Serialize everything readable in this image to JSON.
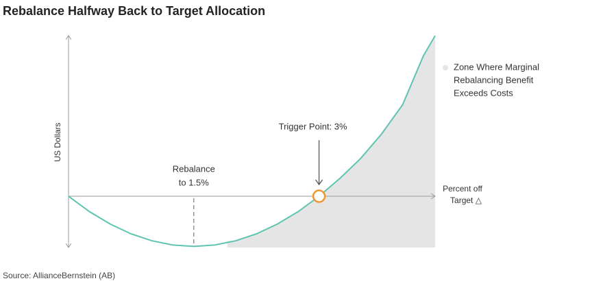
{
  "chart_data": {
    "type": "line",
    "title": "Rebalance Halfway Back to Target Allocation",
    "y_label": "US Dollars",
    "x_label": [
      "Percent off",
      "Target △"
    ],
    "xlim": [
      0,
      4.39
    ],
    "ylim": [
      -2.3,
      7.3
    ],
    "x": [
      0,
      0.25,
      0.5,
      0.75,
      1,
      1.25,
      1.5,
      1.75,
      2,
      2.25,
      2.5,
      2.75,
      3,
      3.25,
      3.5,
      3.75,
      4,
      4.25,
      4.39
    ],
    "series": [
      {
        "color": "#5cc4b0",
        "values": [
          0,
          -0.69,
          -1.25,
          -1.69,
          -2,
          -2.19,
          -2.25,
          -2.19,
          -2,
          -1.69,
          -1.25,
          -0.69,
          0,
          0.8,
          1.7,
          2.8,
          4.1,
          6.3,
          7.2
        ]
      }
    ],
    "zone": {
      "name": [
        "Zone Where Marginal",
        "Rebalancing Benefit",
        "Exceeds Costs"
      ],
      "color": "#e5e5e5",
      "x_start": 1.9
    },
    "annotations": [
      {
        "lines": [
          "Rebalance",
          "to 1.5%"
        ],
        "x": 1.5,
        "y": -2.25
      },
      {
        "lines": [
          "Trigger Point: 3%"
        ],
        "x": 3,
        "y": 0,
        "color": "#f0952e"
      }
    ],
    "source": "Source: AllianceBernstein (AB)"
  }
}
